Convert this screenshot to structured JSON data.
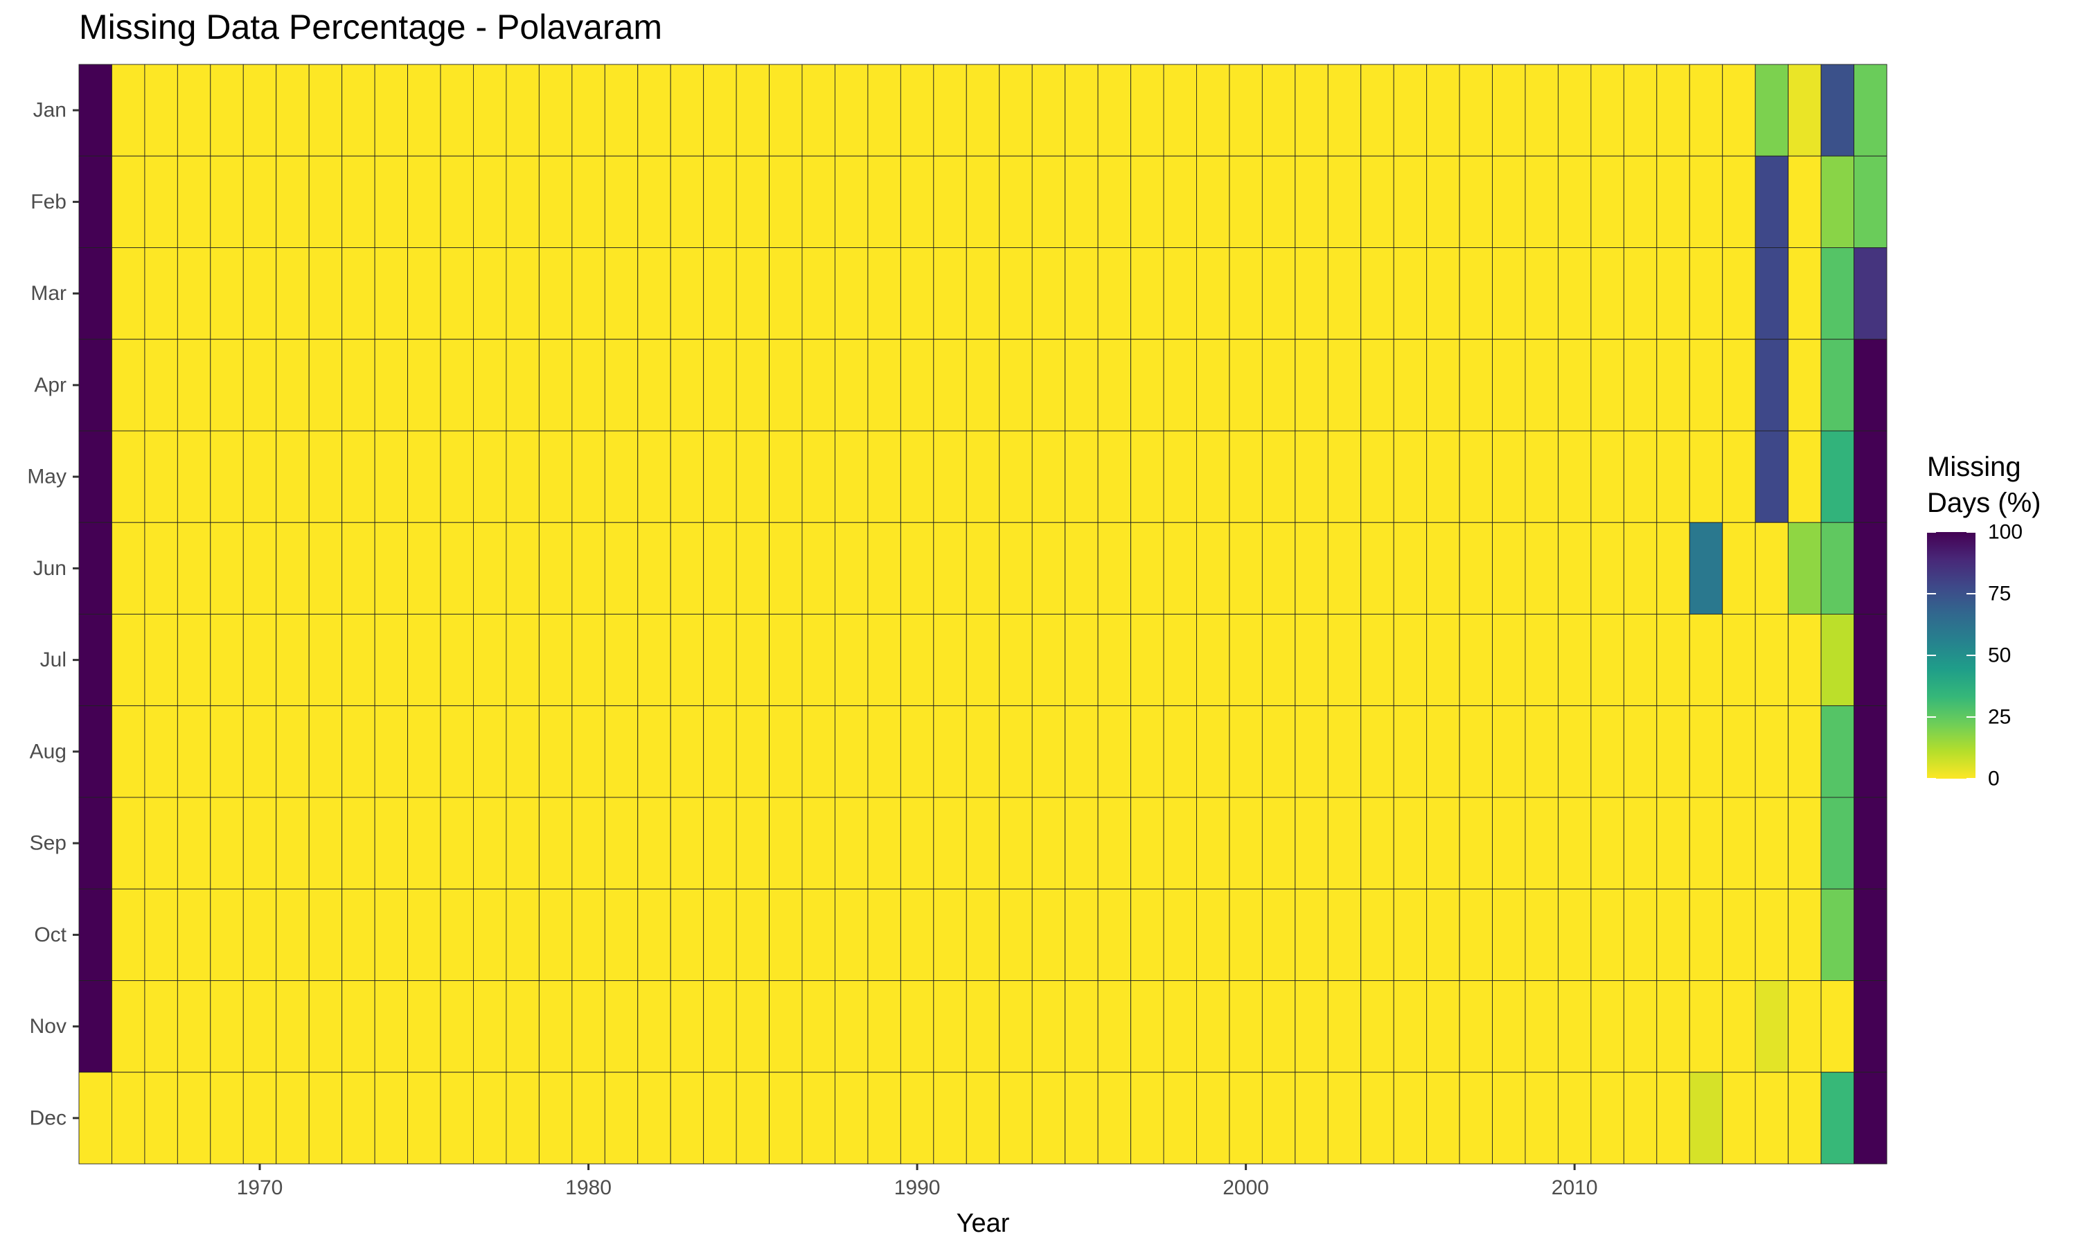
{
  "chart_data": {
    "type": "heatmap",
    "title": "Missing Data Percentage - Polavaram",
    "xlabel": "Year",
    "ylabel": "",
    "x_ticks": [
      1970,
      1980,
      1990,
      2000,
      2010
    ],
    "x_range": [
      1965,
      2019
    ],
    "y_categories": [
      "Jan",
      "Feb",
      "Mar",
      "Apr",
      "May",
      "Jun",
      "Jul",
      "Aug",
      "Sep",
      "Oct",
      "Nov",
      "Dec"
    ],
    "color_scale": {
      "name": "viridis",
      "reversed": true,
      "min": 0,
      "max": 100,
      "stops": [
        "#FDE725",
        "#B5DE2B",
        "#6ECE58",
        "#35B779",
        "#1F9E89",
        "#26828E",
        "#31688E",
        "#3E4989",
        "#482878",
        "#440154"
      ]
    },
    "legend": {
      "title_lines": [
        "Missing",
        "Days (%)"
      ],
      "ticks": [
        0,
        25,
        50,
        75,
        100
      ],
      "position": "right"
    },
    "default_value": 0,
    "cells": [
      {
        "year": 1965,
        "month": "Jan",
        "value": 100
      },
      {
        "year": 1965,
        "month": "Feb",
        "value": 100
      },
      {
        "year": 1965,
        "month": "Mar",
        "value": 100
      },
      {
        "year": 1965,
        "month": "Apr",
        "value": 100
      },
      {
        "year": 1965,
        "month": "May",
        "value": 100
      },
      {
        "year": 1965,
        "month": "Jun",
        "value": 100
      },
      {
        "year": 1965,
        "month": "Jul",
        "value": 100
      },
      {
        "year": 1965,
        "month": "Aug",
        "value": 100
      },
      {
        "year": 1965,
        "month": "Sep",
        "value": 100
      },
      {
        "year": 1965,
        "month": "Oct",
        "value": 100
      },
      {
        "year": 1965,
        "month": "Nov",
        "value": 100
      },
      {
        "year": 1965,
        "month": "Dec",
        "value": 0
      },
      {
        "year": 2014,
        "month": "Jun",
        "value": 60
      },
      {
        "year": 2014,
        "month": "Dec",
        "value": 6
      },
      {
        "year": 2016,
        "month": "Jan",
        "value": 20
      },
      {
        "year": 2016,
        "month": "Feb",
        "value": 78
      },
      {
        "year": 2016,
        "month": "Mar",
        "value": 78
      },
      {
        "year": 2016,
        "month": "Apr",
        "value": 78
      },
      {
        "year": 2016,
        "month": "May",
        "value": 78
      },
      {
        "year": 2016,
        "month": "Nov",
        "value": 4
      },
      {
        "year": 2017,
        "month": "Jan",
        "value": 3
      },
      {
        "year": 2017,
        "month": "Jun",
        "value": 17
      },
      {
        "year": 2018,
        "month": "Jan",
        "value": 75
      },
      {
        "year": 2018,
        "month": "Feb",
        "value": 18
      },
      {
        "year": 2018,
        "month": "Mar",
        "value": 27
      },
      {
        "year": 2018,
        "month": "Apr",
        "value": 27
      },
      {
        "year": 2018,
        "month": "May",
        "value": 35
      },
      {
        "year": 2018,
        "month": "Jun",
        "value": 25
      },
      {
        "year": 2018,
        "month": "Jul",
        "value": 10
      },
      {
        "year": 2018,
        "month": "Aug",
        "value": 27
      },
      {
        "year": 2018,
        "month": "Sep",
        "value": 27
      },
      {
        "year": 2018,
        "month": "Oct",
        "value": 22
      },
      {
        "year": 2018,
        "month": "Nov",
        "value": 0
      },
      {
        "year": 2018,
        "month": "Dec",
        "value": 33
      },
      {
        "year": 2019,
        "month": "Jan",
        "value": 23
      },
      {
        "year": 2019,
        "month": "Feb",
        "value": 23
      },
      {
        "year": 2019,
        "month": "Mar",
        "value": 85
      },
      {
        "year": 2019,
        "month": "Apr",
        "value": 100
      },
      {
        "year": 2019,
        "month": "May",
        "value": 100
      },
      {
        "year": 2019,
        "month": "Jun",
        "value": 100
      },
      {
        "year": 2019,
        "month": "Jul",
        "value": 100
      },
      {
        "year": 2019,
        "month": "Aug",
        "value": 100
      },
      {
        "year": 2019,
        "month": "Sep",
        "value": 100
      },
      {
        "year": 2019,
        "month": "Oct",
        "value": 100
      },
      {
        "year": 2019,
        "month": "Nov",
        "value": 100
      },
      {
        "year": 2019,
        "month": "Dec",
        "value": 100
      }
    ]
  }
}
